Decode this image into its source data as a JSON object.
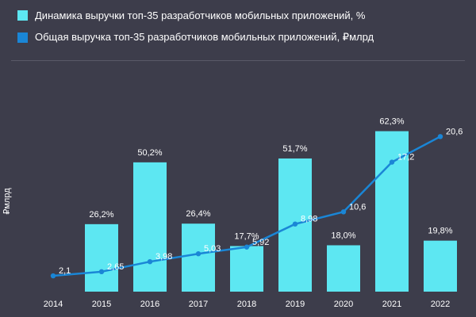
{
  "colors": {
    "background": "#3d3d4b",
    "bars": "#5de7f2",
    "line": "#1a86d6"
  },
  "chart_data": {
    "type": "bar",
    "title": "",
    "xlabel": "",
    "ylabel": "₽млрд",
    "categories": [
      "2014",
      "2015",
      "2016",
      "2017",
      "2018",
      "2019",
      "2020",
      "2021",
      "2022"
    ],
    "legend_position": "top-left",
    "grid": false,
    "series": [
      {
        "name": "Динамика выручки топ-35 разработчиков мобильных приложений, %",
        "type": "bar",
        "color": "#5de7f2",
        "values": [
          null,
          26.2,
          50.2,
          26.4,
          17.7,
          51.7,
          18.0,
          62.3,
          19.8
        ],
        "labels": [
          "",
          "26,2%",
          "50,2%",
          "26,4%",
          "17,7%",
          "51,7%",
          "18,0%",
          "62,3%",
          "19,8%"
        ]
      },
      {
        "name": "Общая выручка топ-35 разработчиков мобильных приложений, ₽млрд",
        "type": "line",
        "color": "#1a86d6",
        "values": [
          2.1,
          2.65,
          3.98,
          5.03,
          5.92,
          8.98,
          10.6,
          17.2,
          20.6
        ],
        "labels": [
          "2,1",
          "2,65",
          "3,98",
          "5,03",
          "5,92",
          "8,98",
          "10,6",
          "17,2",
          "20,6"
        ]
      }
    ]
  }
}
